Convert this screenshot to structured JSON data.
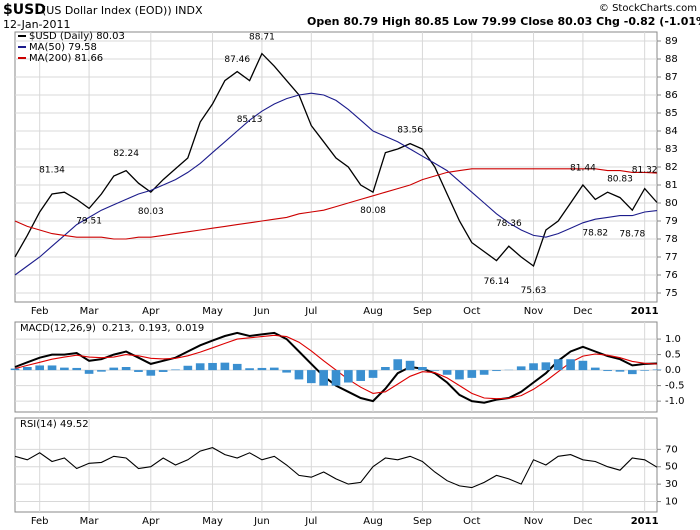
{
  "header": {
    "symbol": "$USD",
    "name": "(US Dollar Index (EOD))",
    "exchange": "INDX",
    "date": "12-Jan-2011",
    "quote": "Open 80.79  High 80.85  Low 79.99  Close 80.03  Chg -0.82 (-1.01%)",
    "copyright": "© StockCharts.com"
  },
  "chart_data": [
    {
      "type": "line",
      "categories": [
        null,
        null,
        "Feb",
        null,
        null,
        null,
        "Mar",
        null,
        null,
        null,
        null,
        "Apr",
        null,
        null,
        null,
        null,
        "May",
        null,
        null,
        null,
        "Jun",
        null,
        null,
        null,
        "Jul",
        null,
        null,
        null,
        null,
        "Aug",
        null,
        null,
        null,
        "Sep",
        null,
        null,
        null,
        "Oct",
        null,
        null,
        null,
        null,
        "Nov",
        null,
        null,
        null,
        "Dec",
        null,
        null,
        null,
        null,
        "2011",
        null
      ],
      "series": [
        {
          "name": "$USD (Daily) 80.03",
          "color": "#000000",
          "values": [
            77.0,
            78.2,
            79.5,
            80.5,
            80.6,
            80.2,
            79.7,
            80.5,
            81.5,
            81.8,
            81.1,
            80.6,
            81.3,
            81.9,
            82.5,
            84.5,
            85.5,
            86.8,
            87.3,
            86.8,
            88.3,
            87.6,
            86.8,
            86.0,
            84.3,
            83.4,
            82.5,
            82.0,
            81.0,
            80.6,
            82.8,
            83.0,
            83.3,
            83.0,
            82.0,
            80.5,
            79.0,
            77.8,
            77.3,
            76.8,
            77.6,
            77.0,
            76.5,
            78.5,
            79.0,
            80.0,
            81.0,
            80.2,
            80.6,
            80.3,
            79.6,
            80.8,
            80.03
          ]
        },
        {
          "name": "MA(50) 79.58",
          "color": "#1c1c8c",
          "values": [
            76.0,
            76.5,
            77.0,
            77.6,
            78.2,
            78.8,
            79.2,
            79.6,
            79.9,
            80.2,
            80.5,
            80.7,
            81.0,
            81.3,
            81.7,
            82.2,
            82.8,
            83.4,
            84.0,
            84.6,
            85.1,
            85.5,
            85.8,
            86.0,
            86.1,
            86.0,
            85.7,
            85.2,
            84.6,
            84.0,
            83.7,
            83.4,
            83.0,
            82.6,
            82.2,
            81.8,
            81.2,
            80.6,
            80.0,
            79.4,
            78.9,
            78.5,
            78.2,
            78.1,
            78.3,
            78.6,
            78.9,
            79.1,
            79.2,
            79.3,
            79.3,
            79.5,
            79.58
          ]
        },
        {
          "name": "MA(200) 81.66",
          "color": "#cc0000",
          "values": [
            79.0,
            78.7,
            78.5,
            78.3,
            78.2,
            78.1,
            78.1,
            78.1,
            78.0,
            78.0,
            78.1,
            78.1,
            78.2,
            78.3,
            78.4,
            78.5,
            78.6,
            78.7,
            78.8,
            78.9,
            79.0,
            79.1,
            79.2,
            79.4,
            79.5,
            79.6,
            79.8,
            80.0,
            80.2,
            80.4,
            80.6,
            80.8,
            81.0,
            81.3,
            81.5,
            81.7,
            81.8,
            81.9,
            81.9,
            81.9,
            81.9,
            81.9,
            81.9,
            81.9,
            81.9,
            81.9,
            81.9,
            81.9,
            81.8,
            81.8,
            81.7,
            81.7,
            81.66
          ]
        }
      ],
      "annotations": [
        81.34,
        82.24,
        79.51,
        80.03,
        87.46,
        85.13,
        88.71,
        83.56,
        80.08,
        78.36,
        76.14,
        75.63,
        81.44,
        80.83,
        78.82,
        78.78,
        81.32
      ],
      "ylim": [
        74.5,
        89.5
      ],
      "yticks": [
        75,
        76,
        77,
        78,
        79,
        80,
        81,
        82,
        83,
        84,
        85,
        86,
        87,
        88,
        89
      ],
      "grid": true
    },
    {
      "type": "line",
      "title": "MACD(12,26,9)",
      "series": [
        {
          "name": "0.213,",
          "color": "#000000",
          "values": [
            0.1,
            0.25,
            0.4,
            0.5,
            0.5,
            0.55,
            0.3,
            0.35,
            0.5,
            0.6,
            0.4,
            0.2,
            0.3,
            0.4,
            0.6,
            0.8,
            0.95,
            1.1,
            1.2,
            1.1,
            1.15,
            1.2,
            1.0,
            0.6,
            0.2,
            -0.2,
            -0.5,
            -0.7,
            -0.9,
            -1.0,
            -0.6,
            -0.1,
            0.1,
            0.05,
            -0.1,
            -0.4,
            -0.8,
            -1.0,
            -1.05,
            -0.95,
            -0.9,
            -0.7,
            -0.4,
            -0.1,
            0.3,
            0.6,
            0.75,
            0.6,
            0.45,
            0.35,
            0.15,
            0.2,
            0.213
          ]
        },
        {
          "name": "0.193,",
          "color": "#dd0000",
          "values": [
            0.05,
            0.15,
            0.25,
            0.35,
            0.42,
            0.48,
            0.42,
            0.4,
            0.42,
            0.5,
            0.46,
            0.38,
            0.36,
            0.38,
            0.46,
            0.58,
            0.72,
            0.86,
            1.0,
            1.04,
            1.08,
            1.12,
            1.08,
            0.9,
            0.62,
            0.3,
            0.0,
            -0.3,
            -0.55,
            -0.75,
            -0.7,
            -0.45,
            -0.2,
            -0.05,
            -0.08,
            -0.25,
            -0.5,
            -0.75,
            -0.9,
            -0.92,
            -0.91,
            -0.82,
            -0.62,
            -0.35,
            -0.05,
            0.25,
            0.45,
            0.52,
            0.48,
            0.4,
            0.28,
            0.22,
            0.193
          ]
        },
        {
          "name": "0.019",
          "color": "#3a8fd0",
          "kind": "bar",
          "values": [
            0.05,
            0.1,
            0.15,
            0.15,
            0.08,
            0.07,
            -0.12,
            -0.05,
            0.08,
            0.1,
            -0.06,
            -0.18,
            -0.06,
            0.02,
            0.14,
            0.22,
            0.23,
            0.24,
            0.2,
            0.06,
            0.07,
            0.08,
            -0.08,
            -0.3,
            -0.42,
            -0.5,
            -0.5,
            -0.4,
            -0.35,
            -0.25,
            0.1,
            0.35,
            0.3,
            0.1,
            -0.02,
            -0.15,
            -0.3,
            -0.25,
            -0.15,
            -0.03,
            0.01,
            0.12,
            0.22,
            0.25,
            0.35,
            0.35,
            0.3,
            0.08,
            -0.03,
            -0.05,
            -0.13,
            -0.02,
            0.019
          ]
        }
      ],
      "ylim": [
        -1.35,
        1.55
      ],
      "yticks": [
        {
          "value": 1,
          "label": "1.0"
        },
        {
          "value": 0.5,
          "label": "0.5"
        },
        {
          "value": 0,
          "label": "0.0"
        },
        {
          "value": -0.5,
          "label": "-0.5"
        },
        {
          "value": -1,
          "label": "-1.0"
        }
      ],
      "grid": true
    },
    {
      "type": "line",
      "title": "RSI(14) 49.52",
      "categories": [
        null,
        null,
        "Feb",
        null,
        null,
        null,
        "Mar",
        null,
        null,
        null,
        null,
        "Apr",
        null,
        null,
        null,
        null,
        "May",
        null,
        null,
        null,
        "Jun",
        null,
        null,
        null,
        "Jul",
        null,
        null,
        null,
        null,
        "Aug",
        null,
        null,
        null,
        "Sep",
        null,
        null,
        null,
        "Oct",
        null,
        null,
        null,
        null,
        "Nov",
        null,
        null,
        null,
        "Dec",
        null,
        null,
        null,
        null,
        "2011",
        null
      ],
      "series": [
        {
          "color": "#000000",
          "values": [
            62,
            58,
            66,
            56,
            60,
            48,
            54,
            55,
            62,
            60,
            48,
            50,
            60,
            52,
            58,
            68,
            72,
            64,
            60,
            66,
            58,
            62,
            52,
            40,
            38,
            44,
            36,
            30,
            32,
            50,
            60,
            58,
            62,
            56,
            44,
            34,
            28,
            26,
            32,
            40,
            36,
            30,
            58,
            52,
            62,
            64,
            58,
            56,
            50,
            46,
            60,
            58,
            49.52
          ]
        }
      ],
      "ylim": [
        -2,
        106
      ],
      "yticks": [
        10,
        30,
        50,
        70
      ],
      "grid": true
    }
  ]
}
